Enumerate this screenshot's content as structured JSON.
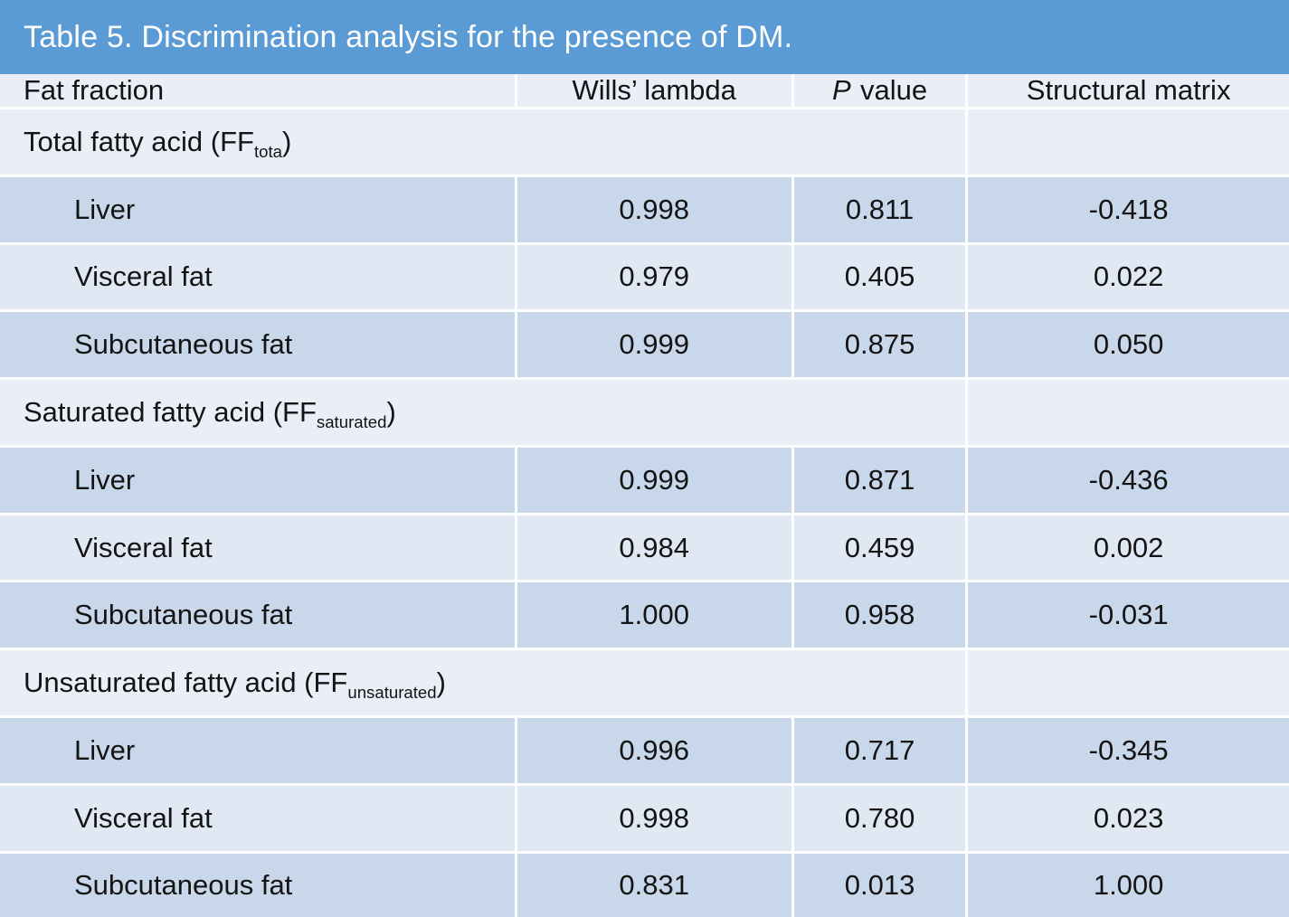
{
  "title": "Table 5. Discrimination analysis for the presence of DM.",
  "columns": {
    "fat_fraction": "Fat fraction",
    "wills_lambda": "Wills’ lambda",
    "p_value_italic": "P",
    "p_value_rest": "value",
    "structural_matrix": "Structural matrix"
  },
  "groups": [
    {
      "label": {
        "pre": "Total fatty acid (FF",
        "sub": "tota",
        "post": ")"
      },
      "rows": [
        {
          "name": "Liver",
          "wills_lambda": "0.998",
          "p_value": "0.811",
          "structural_matrix": "-0.418"
        },
        {
          "name": "Visceral fat",
          "wills_lambda": "0.979",
          "p_value": "0.405",
          "structural_matrix": "0.022"
        },
        {
          "name": "Subcutaneous fat",
          "wills_lambda": "0.999",
          "p_value": "0.875",
          "structural_matrix": "0.050"
        }
      ]
    },
    {
      "label": {
        "pre": "Saturated fatty acid (FF",
        "sub": "saturated",
        "post": ")"
      },
      "rows": [
        {
          "name": "Liver",
          "wills_lambda": "0.999",
          "p_value": "0.871",
          "structural_matrix": "-0.436"
        },
        {
          "name": "Visceral fat",
          "wills_lambda": "0.984",
          "p_value": "0.459",
          "structural_matrix": "0.002"
        },
        {
          "name": "Subcutaneous fat",
          "wills_lambda": "1.000",
          "p_value": "0.958",
          "structural_matrix": "-0.031"
        }
      ]
    },
    {
      "label": {
        "pre": "Unsaturated fatty acid (FF",
        "sub": "unsaturated",
        "post": ")"
      },
      "rows": [
        {
          "name": "Liver",
          "wills_lambda": "0.996",
          "p_value": "0.717",
          "structural_matrix": "-0.345"
        },
        {
          "name": "Visceral fat",
          "wills_lambda": "0.998",
          "p_value": "0.780",
          "structural_matrix": "0.023"
        },
        {
          "name": "Subcutaneous fat",
          "wills_lambda": "0.831",
          "p_value": "0.013",
          "structural_matrix": "1.000"
        }
      ]
    }
  ],
  "colors": {
    "title_bg": "#5b9bd5",
    "band_dark": "#c9d7ea",
    "band_light": "#e0e8f3",
    "section_bg": "#e9eef7"
  }
}
